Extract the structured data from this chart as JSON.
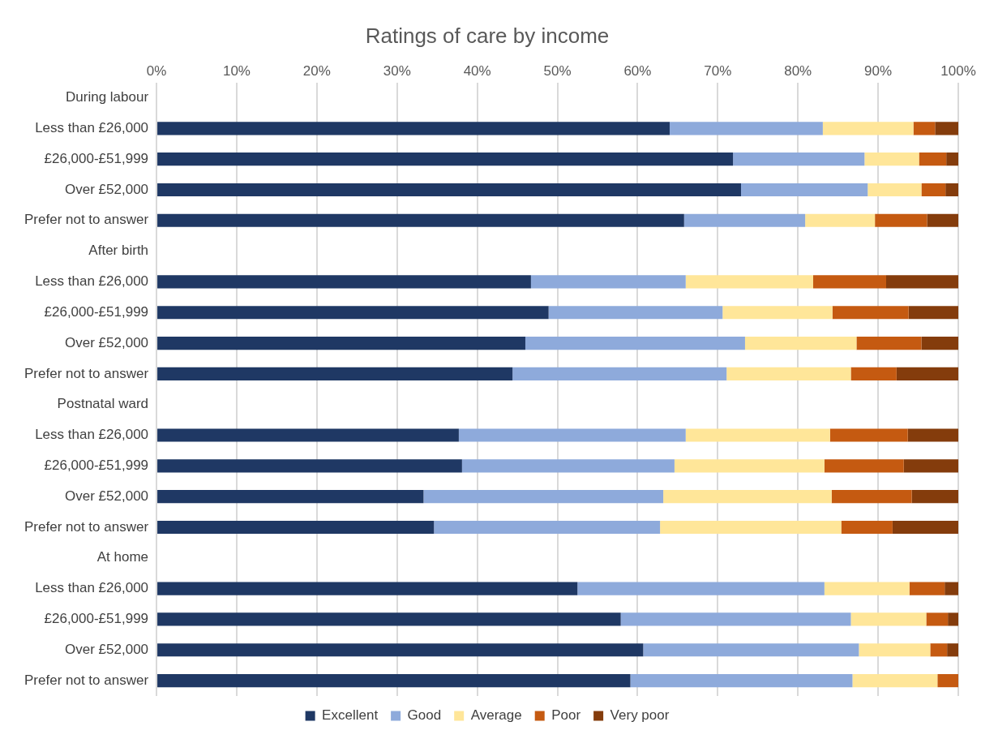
{
  "chart_data": {
    "type": "bar",
    "title": "Ratings of care by income",
    "orientation": "horizontal",
    "stacked": true,
    "categories": [
      "During labour",
      "Less than £26,000",
      "£26,000-£51,999",
      "Over £52,000",
      "Prefer not to answer",
      "After birth",
      "Less than £26,000",
      "£26,000-£51,999",
      "Over £52,000",
      "Prefer not to answer",
      "Postnatal ward",
      "Less than £26,000",
      "£26,000-£51,999",
      "Over £52,000",
      "Prefer not to answer",
      "At home",
      "Less than £26,000",
      "£26,000-£51,999",
      "Over £52,000",
      "Prefer not to answer"
    ],
    "series": [
      {
        "name": "Excellent",
        "color": "#1f3864",
        "values": [
          null,
          64.0,
          71.9,
          72.9,
          65.8,
          null,
          46.7,
          48.9,
          46.0,
          44.4,
          null,
          37.7,
          38.1,
          33.3,
          34.6,
          null,
          52.5,
          57.9,
          60.7,
          59.1
        ]
      },
      {
        "name": "Good",
        "color": "#8eaadb",
        "values": [
          null,
          19.1,
          16.4,
          15.8,
          15.1,
          null,
          19.3,
          21.7,
          27.4,
          26.7,
          null,
          28.3,
          26.5,
          29.9,
          28.2,
          null,
          30.8,
          28.7,
          26.9,
          27.7
        ]
      },
      {
        "name": "Average",
        "color": "#ffe699",
        "values": [
          null,
          11.3,
          6.8,
          6.7,
          8.7,
          null,
          15.9,
          13.7,
          13.9,
          15.5,
          null,
          18.0,
          18.7,
          21.0,
          22.6,
          null,
          10.6,
          9.4,
          8.9,
          10.6
        ]
      },
      {
        "name": "Poor",
        "color": "#c55a11",
        "values": [
          null,
          2.7,
          3.4,
          3.0,
          6.5,
          null,
          9.1,
          9.5,
          8.1,
          5.7,
          null,
          9.7,
          9.9,
          10.0,
          6.4,
          null,
          4.4,
          2.7,
          2.1,
          2.6
        ]
      },
      {
        "name": "Very poor",
        "color": "#843c0c",
        "values": [
          null,
          2.9,
          1.5,
          1.6,
          3.9,
          null,
          9.0,
          6.2,
          4.6,
          7.7,
          null,
          6.3,
          6.8,
          5.8,
          8.2,
          null,
          1.7,
          1.3,
          1.4,
          0
        ]
      }
    ],
    "xlim": [
      0,
      100
    ],
    "xticks": [
      {
        "value": 0,
        "label": "0%"
      },
      {
        "value": 10,
        "label": "10%"
      },
      {
        "value": 20,
        "label": "20%"
      },
      {
        "value": 30,
        "label": "30%"
      },
      {
        "value": 40,
        "label": "40%"
      },
      {
        "value": 50,
        "label": "50%"
      },
      {
        "value": 60,
        "label": "60%"
      },
      {
        "value": 70,
        "label": "70%"
      },
      {
        "value": 80,
        "label": "80%"
      },
      {
        "value": 90,
        "label": "90%"
      },
      {
        "value": 100,
        "label": "100%"
      }
    ],
    "grid": "x",
    "legend": "bottom"
  }
}
